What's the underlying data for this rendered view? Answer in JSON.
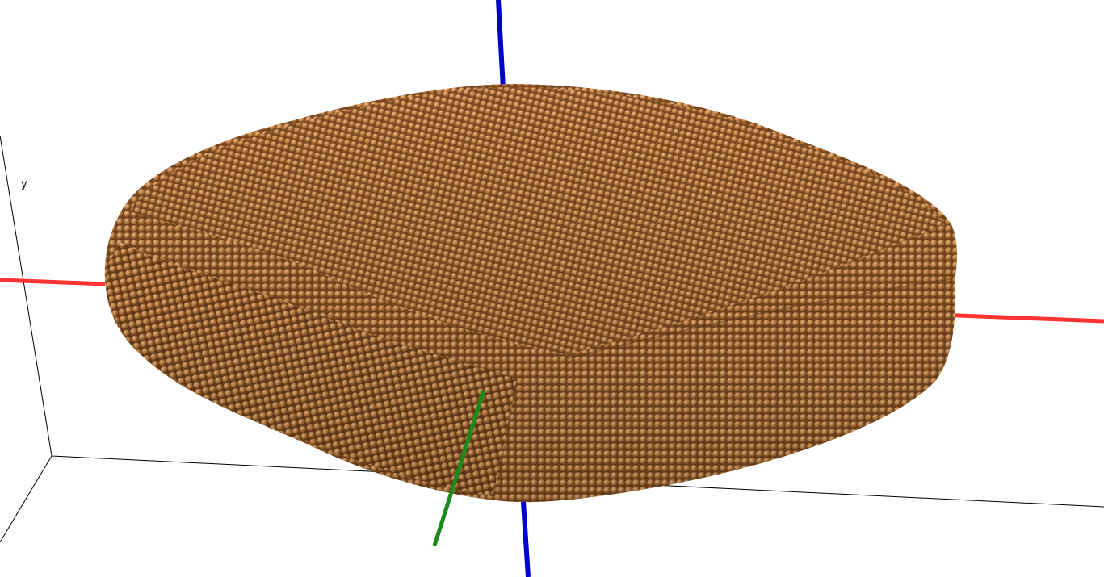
{
  "viewer": {
    "axis_label_y": "y",
    "colors": {
      "background": "#ffffff",
      "atom": "#c8874a",
      "atom_highlight": "#f4c48f",
      "atom_shadow": "#6b3d14",
      "axis_x": "#ff3333",
      "axis_y": "#1a8a1a",
      "axis_z": "#0000cc",
      "box_edge": "#000000"
    },
    "object": "nanoparticle-atoms",
    "icons": [
      "x-axis-icon",
      "y-axis-icon",
      "z-axis-icon"
    ]
  }
}
